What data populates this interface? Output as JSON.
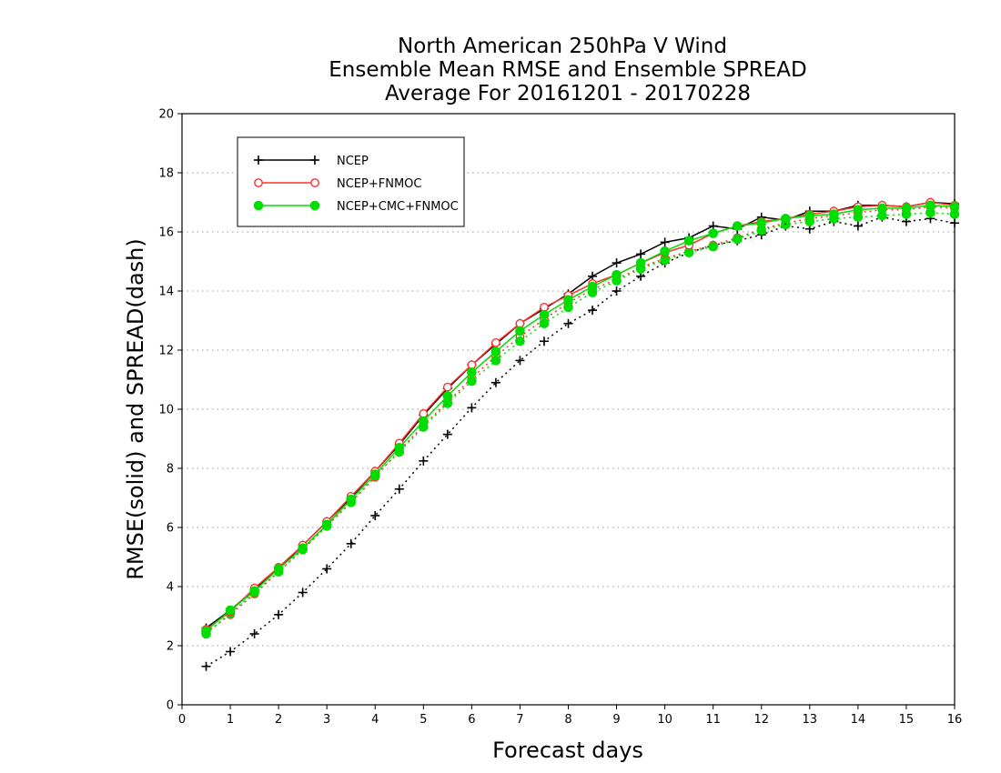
{
  "chart_data": {
    "type": "line",
    "title_lines": [
      "North American 250hPa V Wind",
      "Ensemble Mean RMSE and Ensemble SPREAD",
      "Average For 20161201 - 20170228"
    ],
    "xlabel": "Forecast days",
    "ylabel": "RMSE(solid) and SPREAD(dash)",
    "xlim": [
      0,
      16
    ],
    "ylim": [
      0,
      20
    ],
    "xticks": [
      "0",
      "1",
      "2",
      "3",
      "4",
      "5",
      "6",
      "7",
      "8",
      "9",
      "10",
      "11",
      "12",
      "13",
      "14",
      "15",
      "16"
    ],
    "yticks": [
      "0",
      "2",
      "4",
      "6",
      "8",
      "10",
      "12",
      "14",
      "16",
      "18",
      "20"
    ],
    "grid": true,
    "legend_position": "top-left",
    "x": [
      0.5,
      1,
      1.5,
      2,
      2.5,
      3,
      3.5,
      4,
      4.5,
      5,
      5.5,
      6,
      6.5,
      7,
      7.5,
      8,
      8.5,
      9,
      9.5,
      10,
      10.5,
      11,
      11.5,
      12,
      12.5,
      13,
      13.5,
      14,
      14.5,
      15,
      15.5,
      16
    ],
    "series": [
      {
        "name": "NCEP",
        "color": "#000000",
        "marker": "plus",
        "rmse": [
          2.6,
          3.2,
          3.9,
          4.6,
          5.4,
          6.2,
          7.0,
          7.9,
          8.8,
          9.8,
          10.7,
          11.5,
          12.2,
          12.9,
          13.4,
          13.9,
          14.5,
          14.95,
          15.25,
          15.65,
          15.8,
          16.2,
          16.1,
          16.5,
          16.4,
          16.7,
          16.7,
          16.9,
          16.9,
          16.85,
          17.0,
          16.95
        ],
        "spread": [
          1.3,
          1.8,
          2.4,
          3.05,
          3.8,
          4.6,
          5.45,
          6.4,
          7.3,
          8.25,
          9.15,
          10.05,
          10.9,
          11.65,
          12.3,
          12.9,
          13.35,
          14.0,
          14.5,
          14.95,
          15.3,
          15.55,
          15.7,
          15.9,
          16.2,
          16.1,
          16.35,
          16.2,
          16.5,
          16.35,
          16.45,
          16.3
        ]
      },
      {
        "name": "NCEP+FNMOC",
        "color": "#ff3030",
        "marker": "open-circle",
        "rmse": [
          2.55,
          3.15,
          3.95,
          4.65,
          5.4,
          6.2,
          7.05,
          7.9,
          8.85,
          9.85,
          10.75,
          11.5,
          12.25,
          12.9,
          13.45,
          13.85,
          14.25,
          14.55,
          14.95,
          15.3,
          15.55,
          15.95,
          16.2,
          16.35,
          16.45,
          16.6,
          16.7,
          16.85,
          16.9,
          16.85,
          17.0,
          16.9
        ],
        "spread": [
          2.45,
          3.05,
          3.75,
          4.5,
          5.25,
          6.05,
          6.85,
          7.7,
          8.6,
          9.45,
          10.25,
          11.05,
          11.8,
          12.45,
          13.05,
          13.6,
          14.05,
          14.4,
          14.8,
          15.1,
          15.35,
          15.55,
          15.8,
          16.1,
          16.3,
          16.45,
          16.55,
          16.65,
          16.75,
          16.75,
          16.85,
          16.8
        ]
      },
      {
        "name": "NCEP+CMC+FNMOC",
        "color": "#00dd00",
        "marker": "filled-circle",
        "rmse": [
          2.5,
          3.2,
          3.85,
          4.6,
          5.3,
          6.1,
          6.95,
          7.8,
          8.7,
          9.6,
          10.45,
          11.25,
          11.95,
          12.65,
          13.2,
          13.7,
          14.15,
          14.55,
          14.95,
          15.35,
          15.7,
          15.95,
          16.2,
          16.3,
          16.45,
          16.55,
          16.6,
          16.75,
          16.8,
          16.8,
          16.9,
          16.85
        ],
        "spread": [
          2.4,
          3.1,
          3.8,
          4.5,
          5.25,
          6.05,
          6.85,
          7.75,
          8.55,
          9.4,
          10.2,
          10.95,
          11.65,
          12.3,
          12.9,
          13.45,
          13.95,
          14.35,
          14.75,
          15.05,
          15.3,
          15.5,
          15.75,
          16.05,
          16.25,
          16.35,
          16.45,
          16.5,
          16.55,
          16.6,
          16.65,
          16.6
        ]
      }
    ]
  }
}
